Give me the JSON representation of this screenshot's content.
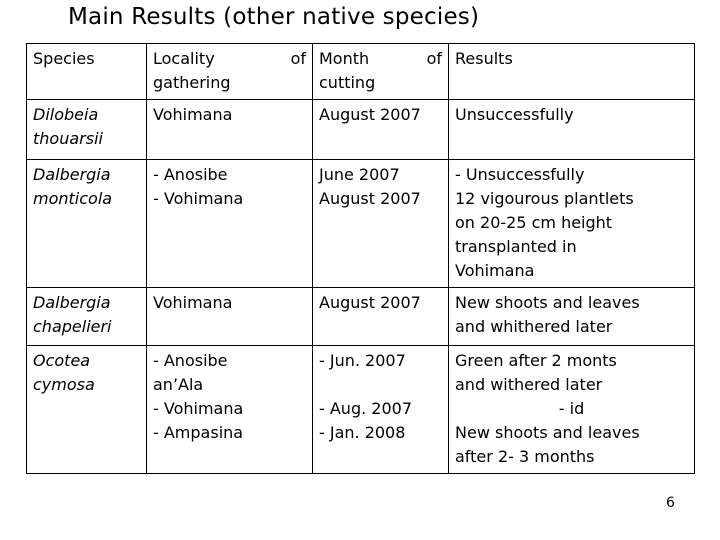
{
  "title": "Main Results (other native species)",
  "header": {
    "species": "Species",
    "locality": [
      "Locality",
      "of",
      "gathering"
    ],
    "month": [
      "Month",
      "of",
      "cutting"
    ],
    "results": "Results"
  },
  "rows": [
    {
      "species": [
        "Dilobeia",
        "thouarsii"
      ],
      "locality": [
        "Vohimana"
      ],
      "month": [
        "August 2007"
      ],
      "results": [
        "Unsuccessfully"
      ]
    },
    {
      "species": [
        "Dalbergia",
        "monticola"
      ],
      "locality": [
        "- Anosibe",
        "- Vohimana"
      ],
      "month": [
        "June 2007",
        "August 2007"
      ],
      "results": [
        "- Unsuccessfully",
        "12 vigourous plantlets",
        "on 20-25 cm height",
        "transplanted in",
        "Vohimana"
      ]
    },
    {
      "species": [
        "Dalbergia",
        "chapelieri"
      ],
      "locality": [
        "Vohimana"
      ],
      "month": [
        "August 2007"
      ],
      "results": [
        "New shoots and leaves",
        "and whithered later"
      ]
    },
    {
      "species": [
        "Ocotea",
        "cymosa"
      ],
      "locality": [
        "- Anosibe",
        "an’Ala",
        "- Vohimana",
        "- Ampasina"
      ],
      "month": [
        "- Jun. 2007",
        "",
        "- Aug. 2007",
        "- Jan. 2008"
      ],
      "results": [
        "Green after 2 monts",
        "and withered later",
        "- id",
        "New shoots and leaves",
        "after 2- 3 months"
      ]
    }
  ],
  "page_number": "6"
}
